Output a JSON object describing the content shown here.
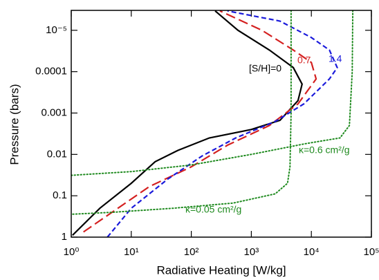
{
  "chart_data": {
    "type": "line",
    "xlabel": "Radiative Heating [W/kg]",
    "ylabel": "Pressure  (bars)",
    "xscale": "log",
    "yscale": "log",
    "xlim": [
      1,
      100000
    ],
    "ylim": [
      1,
      3.3e-06
    ],
    "xticks": [
      {
        "value": 1,
        "label": "10⁰"
      },
      {
        "value": 10,
        "label": "10¹"
      },
      {
        "value": 100,
        "label": "10²"
      },
      {
        "value": 1000,
        "label": "10³"
      },
      {
        "value": 10000,
        "label": "10⁴"
      },
      {
        "value": 100000,
        "label": "10⁵"
      }
    ],
    "yticks": [
      1,
      0.1,
      0.01,
      0.001,
      0.0001,
      {
        "value": 1e-05,
        "label": "10⁻⁵"
      }
    ],
    "series": [
      {
        "name": "[S/H]=0",
        "color": "#000000",
        "style": "solid",
        "x": [
          1.05,
          3,
          10,
          25,
          60,
          200,
          1000,
          3000,
          6000,
          7000,
          5000,
          2000,
          600,
          250
        ],
        "y": [
          0.9,
          0.2,
          0.05,
          0.015,
          0.008,
          0.004,
          0.0025,
          0.0015,
          0.0005,
          0.0002,
          8e-05,
          3e-05,
          1e-05,
          3.4e-06
        ]
      },
      {
        "name": "0.7",
        "color": "#d42020",
        "style": "longdash",
        "x": [
          1.6,
          6,
          20,
          100,
          400,
          2000,
          6000,
          12000,
          10000,
          5000,
          1500,
          300
        ],
        "y": [
          0.75,
          0.2,
          0.06,
          0.02,
          0.006,
          0.002,
          0.0006,
          0.00015,
          6e-05,
          3e-05,
          1e-05,
          3.4e-06
        ]
      },
      {
        "name": "1.4",
        "color": "#1a1adb",
        "style": "dash",
        "x": [
          4,
          10,
          40,
          150,
          550,
          2500,
          7500,
          20000,
          27000,
          20000,
          10000,
          3000,
          400
        ],
        "y": [
          1,
          0.2,
          0.04,
          0.011,
          0.004,
          0.0016,
          0.0006,
          0.00015,
          8e-05,
          3e-05,
          1.5e-05,
          6e-06,
          3.4e-06
        ]
      },
      {
        "name": "κ=0.6 cm²/g",
        "color": "#1e8a1e",
        "style": "dot",
        "x": [
          49000,
          48000,
          43000,
          30000,
          8000,
          1000,
          100,
          10,
          1
        ],
        "y": [
          3.3e-06,
          0.0001,
          0.002,
          0.004,
          0.0055,
          0.01,
          0.018,
          0.026,
          0.032
        ]
      },
      {
        "name": "κ=0.05 cm²/g",
        "color": "#1e8a1e",
        "style": "dot",
        "x": [
          4600,
          4600,
          4400,
          4000,
          2500,
          500,
          50,
          5,
          1
        ],
        "y": [
          3.3e-06,
          0.001,
          0.02,
          0.05,
          0.09,
          0.15,
          0.2,
          0.25,
          0.28
        ]
      }
    ]
  }
}
